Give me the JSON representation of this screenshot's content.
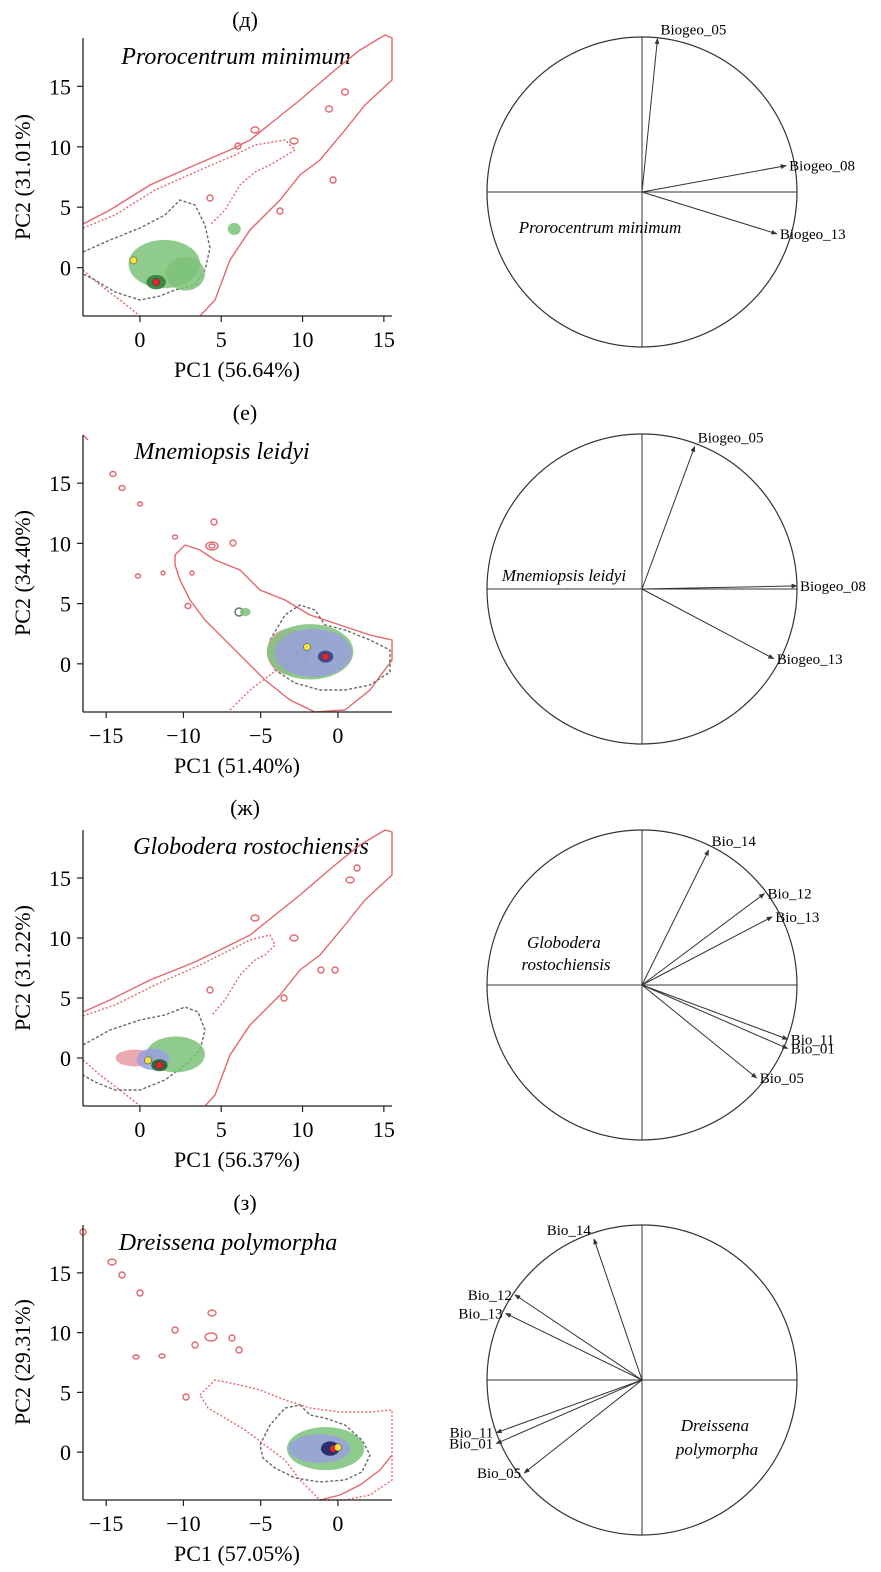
{
  "chart_data": [
    {
      "type": "scatter",
      "panel_label": "(д)",
      "title": "Prorocentrum minimum",
      "xlabel": "PC1 (56.64%)",
      "ylabel": "PC2 (31.01%)",
      "xlim": [
        -3.5,
        15.5
      ],
      "ylim": [
        -4,
        19
      ],
      "xticks": [
        "0",
        "5",
        "10",
        "15"
      ],
      "yticks": [
        "0",
        "5",
        "10",
        "15"
      ],
      "xtick_values": [
        0,
        5,
        10,
        15
      ],
      "ytick_values": [
        0,
        5,
        10,
        15
      ],
      "centroids": [
        {
          "color": "#e8222a",
          "x": 1.0,
          "y": -1.2
        },
        {
          "color": "#f4e23a",
          "x": -0.4,
          "y": 0.6
        }
      ],
      "density_blobs": [
        {
          "color": "#7cc27a",
          "x": 1.5,
          "y": 0.3,
          "rx": 2.2,
          "ry": 2.0
        },
        {
          "color": "#7cc27a",
          "x": 2.8,
          "y": -0.5,
          "rx": 1.2,
          "ry": 1.4
        },
        {
          "color": "#7cc27a",
          "x": 5.8,
          "y": 3.2,
          "rx": 0.4,
          "ry": 0.5
        },
        {
          "color": "#2f7a36",
          "x": 1.0,
          "y": -1.2,
          "rx": 0.6,
          "ry": 0.6
        }
      ],
      "correlation_circle": {
        "label": "Prorocentrum minimum",
        "label_quadrant": "lower-left",
        "variables": [
          {
            "name": "Biogeo_05",
            "x": 0.1,
            "y": 0.99
          },
          {
            "name": "Biogeo_08",
            "x": 0.93,
            "y": 0.17
          },
          {
            "name": "Biogeo_13",
            "x": 0.87,
            "y": -0.27
          }
        ]
      }
    },
    {
      "type": "scatter",
      "panel_label": "(е)",
      "title": "Mnemiopsis leidyi",
      "xlabel": "PC1 (51.40%)",
      "ylabel": "PC2 (34.40%)",
      "xlim": [
        -16.5,
        3.5
      ],
      "ylim": [
        -4,
        19
      ],
      "xticks": [
        "−15",
        "−10",
        "−5",
        "0"
      ],
      "yticks": [
        "0",
        "5",
        "10",
        "15"
      ],
      "xtick_values": [
        -15,
        -10,
        -5,
        0
      ],
      "ytick_values": [
        0,
        5,
        10,
        15
      ],
      "centroids": [
        {
          "color": "#e8222a",
          "x": -0.8,
          "y": 0.6
        },
        {
          "color": "#f4e23a",
          "x": -2.0,
          "y": 1.4
        }
      ],
      "density_blobs": [
        {
          "color": "#e89aa4",
          "x": -3.2,
          "y": 1.0,
          "rx": 1.4,
          "ry": 1.9
        },
        {
          "color": "#7cc27a",
          "x": -1.8,
          "y": 1.0,
          "rx": 2.8,
          "ry": 2.3
        },
        {
          "color": "#9aa0de",
          "x": -1.6,
          "y": 0.9,
          "rx": 2.5,
          "ry": 2.0
        },
        {
          "color": "#7cc27a",
          "x": -6.0,
          "y": 4.3,
          "rx": 0.35,
          "ry": 0.35
        },
        {
          "color": "#333a8a",
          "x": -0.8,
          "y": 0.6,
          "rx": 0.5,
          "ry": 0.5
        }
      ],
      "correlation_circle": {
        "label": "Mnemiopsis leidyi",
        "label_quadrant": "upper-left",
        "variables": [
          {
            "name": "Biogeo_05",
            "x": 0.34,
            "y": 0.92
          },
          {
            "name": "Biogeo_08",
            "x": 1.0,
            "y": 0.02
          },
          {
            "name": "Biogeo_13",
            "x": 0.85,
            "y": -0.45
          }
        ]
      }
    },
    {
      "type": "scatter",
      "panel_label": "(ж)",
      "title": "Globodera rostochiensis",
      "xlabel": "PC1 (56.37%)",
      "ylabel": "PC2 (31.22%)",
      "xlim": [
        -3.5,
        15.5
      ],
      "ylim": [
        -4,
        19
      ],
      "xticks": [
        "0",
        "5",
        "10",
        "15"
      ],
      "yticks": [
        "0",
        "5",
        "10",
        "15"
      ],
      "xtick_values": [
        0,
        5,
        10,
        15
      ],
      "ytick_values": [
        0,
        5,
        10,
        15
      ],
      "centroids": [
        {
          "color": "#e8222a",
          "x": 1.2,
          "y": -0.6
        },
        {
          "color": "#f4e23a",
          "x": 0.5,
          "y": -0.2
        }
      ],
      "density_blobs": [
        {
          "color": "#e89aa4",
          "x": -0.3,
          "y": 0.0,
          "rx": 1.2,
          "ry": 0.7
        },
        {
          "color": "#7cc27a",
          "x": 2.2,
          "y": 0.3,
          "rx": 1.8,
          "ry": 1.5
        },
        {
          "color": "#9aa0de",
          "x": 0.8,
          "y": -0.1,
          "rx": 1.0,
          "ry": 0.9
        },
        {
          "color": "#1f5a26",
          "x": 1.2,
          "y": -0.6,
          "rx": 0.5,
          "ry": 0.5
        }
      ],
      "correlation_circle": {
        "label": "Globodera rostochiensis",
        "label_quadrant": "upper-left",
        "variables": [
          {
            "name": "Bio_14",
            "x": 0.43,
            "y": 0.87
          },
          {
            "name": "Bio_12",
            "x": 0.79,
            "y": 0.59
          },
          {
            "name": "Bio_13",
            "x": 0.84,
            "y": 0.44
          },
          {
            "name": "Bio_11",
            "x": 0.94,
            "y": -0.35
          },
          {
            "name": "Bio_01",
            "x": 0.94,
            "y": -0.41
          },
          {
            "name": "Bio_05",
            "x": 0.74,
            "y": -0.6
          }
        ]
      }
    },
    {
      "type": "scatter",
      "panel_label": "(з)",
      "title": "Dreissena polymorpha",
      "xlabel": "PC1 (57.05%)",
      "ylabel": "PC2 (29.31%)",
      "xlim": [
        -16.5,
        3.5
      ],
      "ylim": [
        -4,
        19
      ],
      "xticks": [
        "−15",
        "−10",
        "−5",
        "0"
      ],
      "yticks": [
        "0",
        "5",
        "10",
        "15"
      ],
      "xtick_values": [
        -15,
        -10,
        -5,
        0
      ],
      "ytick_values": [
        0,
        5,
        10,
        15
      ],
      "centroids": [
        {
          "color": "#e8222a",
          "x": -0.3,
          "y": 0.3
        },
        {
          "color": "#f4e23a",
          "x": 0.0,
          "y": 0.4
        }
      ],
      "density_blobs": [
        {
          "color": "#7cc27a",
          "x": -0.8,
          "y": 0.3,
          "rx": 2.5,
          "ry": 1.8
        },
        {
          "color": "#9aa0de",
          "x": -1.2,
          "y": 0.3,
          "rx": 2.0,
          "ry": 1.2
        },
        {
          "color": "#1a1a5a",
          "x": -0.5,
          "y": 0.3,
          "rx": 0.6,
          "ry": 0.6
        }
      ],
      "correlation_circle": {
        "label": "Dreissena polymorpha",
        "label_quadrant": "lower-right",
        "variables": [
          {
            "name": "Bio_14",
            "x": -0.31,
            "y": 0.91
          },
          {
            "name": "Bio_12",
            "x": -0.82,
            "y": 0.55
          },
          {
            "name": "Bio_13",
            "x": -0.88,
            "y": 0.43
          },
          {
            "name": "Bio_11",
            "x": -0.94,
            "y": -0.34
          },
          {
            "name": "Bio_01",
            "x": -0.94,
            "y": -0.41
          },
          {
            "name": "Bio_05",
            "x": -0.76,
            "y": -0.6
          }
        ]
      }
    }
  ],
  "colors": {
    "envelope": "#e4676e",
    "realized_envelope": "#6a6a6a",
    "axis": "#222222"
  }
}
